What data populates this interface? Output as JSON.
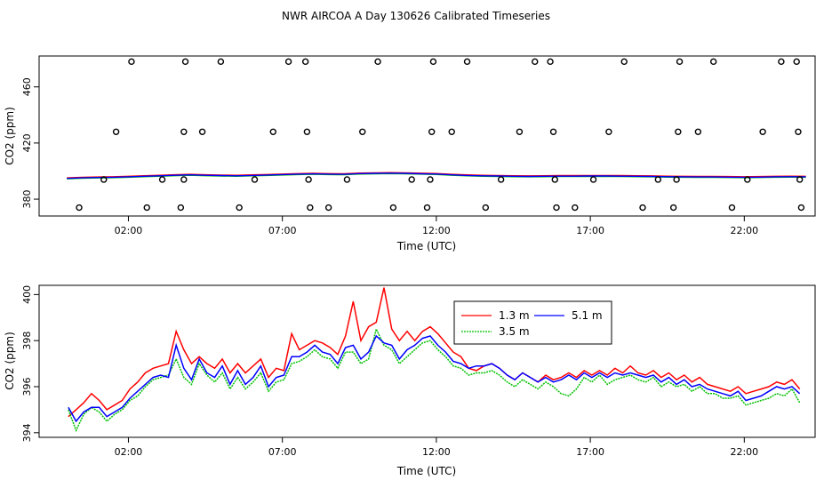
{
  "page": {
    "title": "NWR AIRCOA A  Day 130626  Calibrated Timeseries"
  },
  "chart_data": [
    {
      "type": "line",
      "xlabel": "Time (UTC)",
      "ylabel": "CO2 (ppm)",
      "xlim": [
        -0.9,
        24.3
      ],
      "ylim": [
        368,
        482
      ],
      "xticks": [
        {
          "value": 2,
          "label": "02:00"
        },
        {
          "value": 7,
          "label": "07:00"
        },
        {
          "value": 12,
          "label": "12:00"
        },
        {
          "value": 17,
          "label": "17:00"
        },
        {
          "value": 22,
          "label": "22:00"
        }
      ],
      "yticks": [
        {
          "value": 380,
          "label": "380"
        },
        {
          "value": 420,
          "label": "420"
        },
        {
          "value": 460,
          "label": "460"
        }
      ],
      "colors": {
        "1.3 m": "#ff0000",
        "3.5 m": "#00c000",
        "5.1 m": "#0000ff"
      },
      "series": [
        {
          "x": [
            0,
            0.5,
            1,
            1.5,
            2,
            2.5,
            3,
            3.5,
            4,
            4.5,
            5,
            5.5,
            6,
            6.5,
            7,
            7.5,
            8,
            8.5,
            9,
            9.5,
            10,
            10.5,
            11,
            11.5,
            12,
            12.5,
            13,
            13.5,
            14,
            14.5,
            15,
            15.5,
            16,
            16.5,
            17,
            17.5,
            18,
            18.5,
            19,
            19.5,
            20,
            20.5,
            21,
            21.5,
            22,
            22.5,
            23,
            23.5,
            24
          ],
          "y": [
            394.8,
            395.2,
            395.4,
            395.6,
            395.9,
            396.3,
            396.6,
            397,
            397.3,
            397,
            396.8,
            396.6,
            396.9,
            397.2,
            397.5,
            397.8,
            398,
            397.8,
            397.7,
            398.2,
            398.4,
            398.5,
            398.4,
            398.1,
            397.9,
            397.3,
            396.9,
            396.6,
            396.5,
            396.3,
            396.2,
            396.3,
            396.4,
            396.4,
            396.5,
            396.5,
            396.4,
            396.3,
            396.2,
            396,
            395.9,
            395.8,
            395.8,
            395.7,
            395.6,
            395.7,
            395.9,
            396,
            395.9
          ]
        }
      ],
      "outliers": [
        {
          "x": 0.4,
          "y": 374
        },
        {
          "x": 1.2,
          "y": 394
        },
        {
          "x": 1.6,
          "y": 428
        },
        {
          "x": 2.1,
          "y": 478
        },
        {
          "x": 2.6,
          "y": 374
        },
        {
          "x": 3.1,
          "y": 394
        },
        {
          "x": 3.7,
          "y": 374
        },
        {
          "x": 3.8,
          "y": 394
        },
        {
          "x": 3.8,
          "y": 428
        },
        {
          "x": 3.85,
          "y": 478
        },
        {
          "x": 4.4,
          "y": 428
        },
        {
          "x": 5.0,
          "y": 478
        },
        {
          "x": 5.6,
          "y": 374
        },
        {
          "x": 6.1,
          "y": 394
        },
        {
          "x": 6.7,
          "y": 428
        },
        {
          "x": 7.2,
          "y": 478
        },
        {
          "x": 7.75,
          "y": 478
        },
        {
          "x": 7.8,
          "y": 428
        },
        {
          "x": 7.85,
          "y": 394
        },
        {
          "x": 7.9,
          "y": 374
        },
        {
          "x": 8.5,
          "y": 374
        },
        {
          "x": 9.1,
          "y": 394
        },
        {
          "x": 9.6,
          "y": 428
        },
        {
          "x": 10.1,
          "y": 478
        },
        {
          "x": 10.6,
          "y": 374
        },
        {
          "x": 11.2,
          "y": 394
        },
        {
          "x": 11.7,
          "y": 374
        },
        {
          "x": 11.8,
          "y": 394
        },
        {
          "x": 11.85,
          "y": 428
        },
        {
          "x": 11.9,
          "y": 478
        },
        {
          "x": 12.5,
          "y": 428
        },
        {
          "x": 13.0,
          "y": 478
        },
        {
          "x": 13.6,
          "y": 374
        },
        {
          "x": 14.1,
          "y": 394
        },
        {
          "x": 14.7,
          "y": 428
        },
        {
          "x": 15.2,
          "y": 478
        },
        {
          "x": 15.7,
          "y": 478
        },
        {
          "x": 15.8,
          "y": 428
        },
        {
          "x": 15.85,
          "y": 394
        },
        {
          "x": 15.9,
          "y": 374
        },
        {
          "x": 16.5,
          "y": 374
        },
        {
          "x": 17.1,
          "y": 394
        },
        {
          "x": 17.6,
          "y": 428
        },
        {
          "x": 18.1,
          "y": 478
        },
        {
          "x": 18.7,
          "y": 374
        },
        {
          "x": 19.2,
          "y": 394
        },
        {
          "x": 19.7,
          "y": 374
        },
        {
          "x": 19.8,
          "y": 394
        },
        {
          "x": 19.85,
          "y": 428
        },
        {
          "x": 19.9,
          "y": 478
        },
        {
          "x": 20.5,
          "y": 428
        },
        {
          "x": 21.0,
          "y": 478
        },
        {
          "x": 21.6,
          "y": 374
        },
        {
          "x": 22.1,
          "y": 394
        },
        {
          "x": 22.6,
          "y": 428
        },
        {
          "x": 23.2,
          "y": 478
        },
        {
          "x": 23.7,
          "y": 478
        },
        {
          "x": 23.75,
          "y": 428
        },
        {
          "x": 23.8,
          "y": 394
        },
        {
          "x": 23.85,
          "y": 374
        }
      ]
    },
    {
      "type": "line",
      "xlabel": "Time (UTC)",
      "ylabel": "CO2 (ppm)",
      "xlim": [
        -0.9,
        24.3
      ],
      "ylim": [
        393.8,
        400.4
      ],
      "xticks": [
        {
          "value": 2,
          "label": "02:00"
        },
        {
          "value": 7,
          "label": "07:00"
        },
        {
          "value": 12,
          "label": "12:00"
        },
        {
          "value": 17,
          "label": "17:00"
        },
        {
          "value": 22,
          "label": "22:00"
        }
      ],
      "yticks": [
        {
          "value": 394,
          "label": "394"
        },
        {
          "value": 396,
          "label": "396"
        },
        {
          "value": 398,
          "label": "398"
        },
        {
          "value": 400,
          "label": "400"
        }
      ],
      "legend_position": "top-center",
      "x": [
        0.05,
        0.3,
        0.55,
        0.8,
        1.05,
        1.3,
        1.55,
        1.8,
        2.05,
        2.3,
        2.55,
        2.8,
        3.05,
        3.3,
        3.55,
        3.8,
        4.05,
        4.3,
        4.55,
        4.8,
        5.05,
        5.3,
        5.55,
        5.8,
        6.05,
        6.3,
        6.55,
        6.8,
        7.05,
        7.3,
        7.55,
        7.8,
        8.05,
        8.3,
        8.55,
        8.8,
        9.05,
        9.3,
        9.55,
        9.8,
        10.05,
        10.3,
        10.55,
        10.8,
        11.05,
        11.3,
        11.55,
        11.8,
        12.05,
        12.3,
        12.55,
        12.8,
        13.05,
        13.3,
        13.55,
        13.8,
        14.05,
        14.3,
        14.55,
        14.8,
        15.05,
        15.3,
        15.55,
        15.8,
        16.05,
        16.3,
        16.55,
        16.8,
        17.05,
        17.3,
        17.55,
        17.8,
        18.05,
        18.3,
        18.55,
        18.8,
        19.05,
        19.3,
        19.55,
        19.8,
        20.05,
        20.3,
        20.55,
        20.8,
        21.05,
        21.3,
        21.55,
        21.8,
        22.05,
        22.3,
        22.55,
        22.8,
        23.05,
        23.3,
        23.55,
        23.8
      ],
      "series": [
        {
          "name": "1.3 m",
          "color": "#ff0000",
          "values": [
            394.7,
            395.0,
            395.3,
            395.7,
            395.4,
            395.0,
            395.2,
            395.4,
            395.9,
            396.2,
            396.6,
            396.8,
            396.9,
            397.0,
            398.4,
            397.6,
            397.0,
            397.3,
            397.0,
            396.8,
            397.2,
            396.6,
            397.0,
            396.6,
            396.9,
            397.2,
            396.4,
            396.8,
            396.7,
            398.3,
            397.6,
            397.8,
            398.0,
            397.9,
            397.7,
            397.4,
            398.2,
            399.7,
            398.0,
            398.6,
            398.8,
            400.3,
            398.5,
            398.0,
            398.4,
            398.0,
            398.4,
            398.6,
            398.3,
            397.9,
            397.5,
            397.3,
            396.8,
            396.7,
            396.9,
            397.0,
            396.8,
            396.5,
            396.3,
            396.6,
            396.4,
            396.2,
            396.5,
            396.3,
            396.4,
            396.6,
            396.4,
            396.7,
            396.5,
            396.7,
            396.5,
            396.8,
            396.6,
            396.9,
            396.6,
            396.5,
            396.7,
            396.4,
            396.6,
            396.3,
            396.5,
            396.2,
            396.4,
            396.1,
            396.0,
            395.9,
            395.8,
            396.0,
            395.7,
            395.8,
            395.9,
            396.0,
            396.2,
            396.1,
            396.3,
            395.9
          ]
        },
        {
          "name": "3.5 m",
          "color": "#00c000",
          "values": [
            395.0,
            394.1,
            394.8,
            395.1,
            394.9,
            394.5,
            394.8,
            395.0,
            395.4,
            395.6,
            396.0,
            396.3,
            396.4,
            396.5,
            397.2,
            396.4,
            396.1,
            397.0,
            396.5,
            396.2,
            396.6,
            395.9,
            396.4,
            395.9,
            396.2,
            396.6,
            395.8,
            396.2,
            396.3,
            397.0,
            397.1,
            397.3,
            397.6,
            397.3,
            397.2,
            396.8,
            397.5,
            397.5,
            397.0,
            397.2,
            398.5,
            397.8,
            397.6,
            397.0,
            397.3,
            397.6,
            397.9,
            398.0,
            397.6,
            397.3,
            396.9,
            396.8,
            396.5,
            396.6,
            396.6,
            396.7,
            396.5,
            396.2,
            396.0,
            396.3,
            396.1,
            395.9,
            396.2,
            396.0,
            395.7,
            395.6,
            395.9,
            396.4,
            396.2,
            396.5,
            396.1,
            396.3,
            396.4,
            396.5,
            396.3,
            396.2,
            396.4,
            396.0,
            396.2,
            396.0,
            396.1,
            395.8,
            396.0,
            395.7,
            395.7,
            395.5,
            395.5,
            395.6,
            395.2,
            395.3,
            395.4,
            395.5,
            395.7,
            395.6,
            395.9,
            395.3
          ]
        },
        {
          "name": "5.1 m",
          "color": "#0000ff",
          "values": [
            395.1,
            394.5,
            394.9,
            395.1,
            395.1,
            394.7,
            394.9,
            395.1,
            395.5,
            395.8,
            396.1,
            396.4,
            396.5,
            396.4,
            397.8,
            396.8,
            396.3,
            397.2,
            396.6,
            396.4,
            396.9,
            396.1,
            396.7,
            396.1,
            396.4,
            396.9,
            396.0,
            396.4,
            396.5,
            397.3,
            397.3,
            397.5,
            397.8,
            397.5,
            397.4,
            397.0,
            397.7,
            397.8,
            397.2,
            397.5,
            398.2,
            397.9,
            397.8,
            397.2,
            397.6,
            397.8,
            398.1,
            398.2,
            397.8,
            397.5,
            397.1,
            397.0,
            396.8,
            396.9,
            396.9,
            397.0,
            396.8,
            396.5,
            396.3,
            396.6,
            396.4,
            396.2,
            396.4,
            396.2,
            396.3,
            396.5,
            396.3,
            396.6,
            396.4,
            396.6,
            396.4,
            396.6,
            396.5,
            396.6,
            396.5,
            396.4,
            396.5,
            396.2,
            396.4,
            396.1,
            396.3,
            396.0,
            396.1,
            395.9,
            395.8,
            395.7,
            395.6,
            395.8,
            395.4,
            395.5,
            395.6,
            395.8,
            396.0,
            395.9,
            396.0,
            395.7
          ]
        }
      ]
    }
  ]
}
